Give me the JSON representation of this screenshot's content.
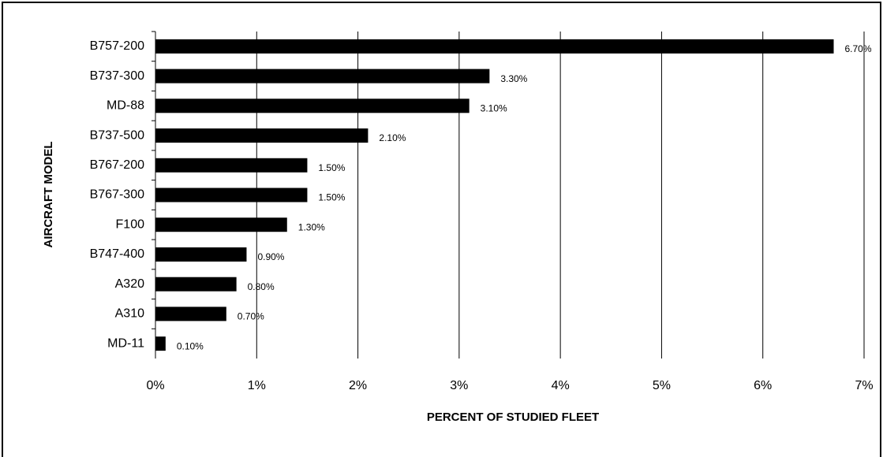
{
  "chart_data": {
    "type": "bar",
    "orientation": "horizontal",
    "xlabel": "PERCENT OF STUDIED FLEET",
    "ylabel": "AIRCRAFT MODEL",
    "categories": [
      "B757-200",
      "B737-300",
      "MD-88",
      "B737-500",
      "B767-200",
      "B767-300",
      "F100",
      "B747-400",
      "A320",
      "A310",
      "MD-11"
    ],
    "values": [
      6.7,
      3.3,
      3.1,
      2.1,
      1.5,
      1.5,
      1.3,
      0.9,
      0.8,
      0.7,
      0.1
    ],
    "value_labels": [
      "6.70%",
      "3.30%",
      "3.10%",
      "2.10%",
      "1.50%",
      "1.50%",
      "1.30%",
      "0.90%",
      "0.80%",
      "0.70%",
      "0.10%"
    ],
    "color": "#000000",
    "xlim": [
      0,
      7
    ],
    "xticks": [
      {
        "value": 0,
        "label": "0%"
      },
      {
        "value": 1,
        "label": "1%"
      },
      {
        "value": 2,
        "label": "2%"
      },
      {
        "value": 3,
        "label": "3%"
      },
      {
        "value": 4,
        "label": "4%"
      },
      {
        "value": 5,
        "label": "5%"
      },
      {
        "value": 6,
        "label": "6%"
      },
      {
        "value": 7,
        "label": "7%"
      }
    ],
    "grid": true
  }
}
